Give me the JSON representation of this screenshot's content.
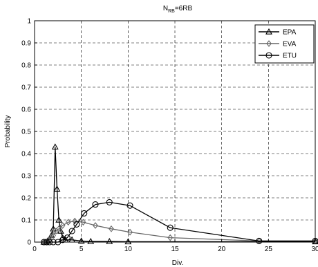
{
  "chart_data": {
    "type": "line",
    "title": {
      "base": "N",
      "sub": "RB",
      "rest": "=6RB"
    },
    "xlabel": "Div.",
    "ylabel": "Probability",
    "xlim": [
      0,
      30
    ],
    "ylim": [
      0,
      1
    ],
    "xticks": [
      0,
      5,
      10,
      15,
      20,
      25,
      30
    ],
    "yticks": [
      0,
      0.1,
      0.2,
      0.3,
      0.4,
      0.5,
      0.6,
      0.7,
      0.8,
      0.9,
      1
    ],
    "grid": "dashed",
    "legend_position": "top-right",
    "series": [
      {
        "name": "EPA",
        "marker": "triangle",
        "color": "#000000",
        "x": [
          1.0,
          1.2,
          1.4,
          1.6,
          1.8,
          2.0,
          2.2,
          2.4,
          2.6,
          2.8,
          3.0,
          3.3,
          4.0,
          5.0,
          6.0,
          8.0,
          10.0,
          30.0
        ],
        "y": [
          0.0,
          0.0,
          0.005,
          0.01,
          0.03,
          0.06,
          0.43,
          0.24,
          0.1,
          0.05,
          0.02,
          0.01,
          0.01,
          0.005,
          0.003,
          0.003,
          0.002,
          0.002
        ]
      },
      {
        "name": "EVA",
        "marker": "diamond",
        "color": "#666666",
        "x": [
          1.0,
          1.3,
          1.6,
          2.0,
          2.3,
          2.6,
          3.0,
          3.6,
          4.3,
          5.2,
          6.5,
          8.2,
          10.2,
          14.5,
          24.0,
          30.0
        ],
        "y": [
          0.0,
          0.0,
          0.01,
          0.03,
          0.05,
          0.06,
          0.075,
          0.09,
          0.095,
          0.09,
          0.075,
          0.06,
          0.045,
          0.02,
          0.005,
          0.005
        ]
      },
      {
        "name": "ETU",
        "marker": "circle",
        "color": "#000000",
        "x": [
          1.0,
          1.3,
          1.6,
          2.0,
          2.5,
          3.0,
          3.5,
          4.0,
          4.5,
          5.3,
          6.5,
          8.0,
          10.2,
          14.5,
          24.0,
          30.0
        ],
        "y": [
          0.0,
          0.0,
          0.0,
          0.0,
          0.0,
          0.01,
          0.02,
          0.05,
          0.08,
          0.13,
          0.17,
          0.18,
          0.165,
          0.065,
          0.005,
          0.005
        ]
      }
    ]
  }
}
